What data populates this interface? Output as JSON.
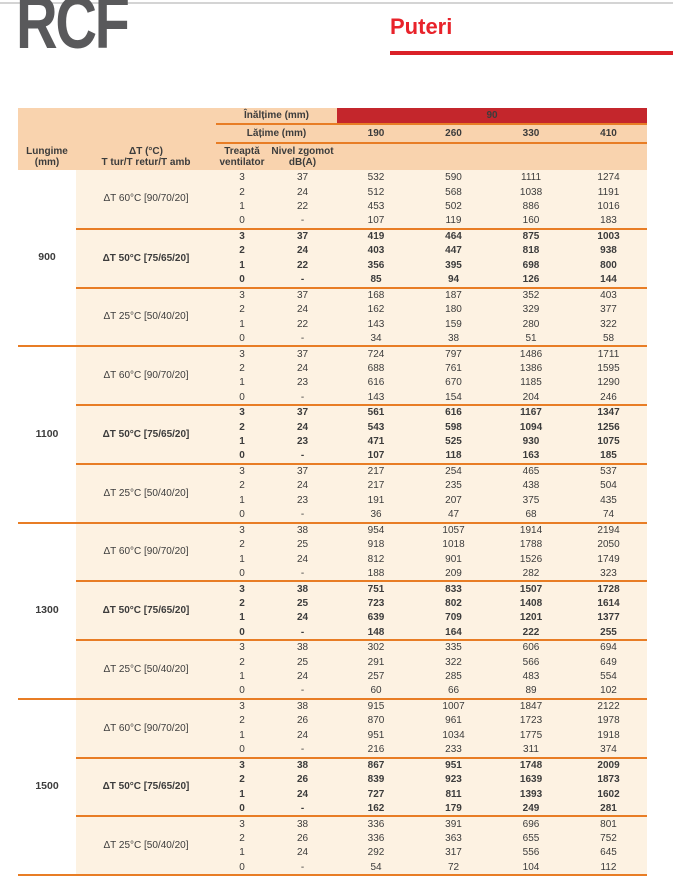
{
  "page": {
    "logo": "RCF",
    "section_title": "Puteri"
  },
  "colors": {
    "accent_red": "#e8232b",
    "band_red": "#c4262c",
    "rule_orange": "#e87d25",
    "header_peach": "#f9d3ae",
    "row_cream": "#fdf2e2",
    "logo_gray": "#59595b"
  },
  "table": {
    "inaltime_label": "Înălțime (mm)",
    "inaltime_value": "90",
    "latime_label": "Lățime (mm)",
    "width_values": [
      "190",
      "260",
      "330",
      "410"
    ],
    "col_headers": {
      "lungime": "Lungime\n(mm)",
      "delta_t": "ΔT (°C)\nT tur/T retur/T amb",
      "treapta": "Treaptă\nventilator",
      "nivel": "Nivel zgomot\ndB(A)"
    },
    "groups": [
      {
        "lungime": "900",
        "subgroups": [
          {
            "label": "ΔT 60°C [90/70/20]",
            "bold": false,
            "rows": [
              [
                "3",
                "37",
                "532",
                "590",
                "1111",
                "1274"
              ],
              [
                "2",
                "24",
                "512",
                "568",
                "1038",
                "1191"
              ],
              [
                "1",
                "22",
                "453",
                "502",
                "886",
                "1016"
              ],
              [
                "0",
                "-",
                "107",
                "119",
                "160",
                "183"
              ]
            ]
          },
          {
            "label": "ΔT 50°C [75/65/20]",
            "bold": true,
            "rows": [
              [
                "3",
                "37",
                "419",
                "464",
                "875",
                "1003"
              ],
              [
                "2",
                "24",
                "403",
                "447",
                "818",
                "938"
              ],
              [
                "1",
                "22",
                "356",
                "395",
                "698",
                "800"
              ],
              [
                "0",
                "-",
                "85",
                "94",
                "126",
                "144"
              ]
            ]
          },
          {
            "label": "ΔT 25°C [50/40/20]",
            "bold": false,
            "rows": [
              [
                "3",
                "37",
                "168",
                "187",
                "352",
                "403"
              ],
              [
                "2",
                "24",
                "162",
                "180",
                "329",
                "377"
              ],
              [
                "1",
                "22",
                "143",
                "159",
                "280",
                "322"
              ],
              [
                "0",
                "-",
                "34",
                "38",
                "51",
                "58"
              ]
            ]
          }
        ]
      },
      {
        "lungime": "1100",
        "subgroups": [
          {
            "label": "ΔT 60°C [90/70/20]",
            "bold": false,
            "rows": [
              [
                "3",
                "37",
                "724",
                "797",
                "1486",
                "1711"
              ],
              [
                "2",
                "24",
                "688",
                "761",
                "1386",
                "1595"
              ],
              [
                "1",
                "23",
                "616",
                "670",
                "1185",
                "1290"
              ],
              [
                "0",
                "-",
                "143",
                "154",
                "204",
                "246"
              ]
            ]
          },
          {
            "label": "ΔT 50°C [75/65/20]",
            "bold": true,
            "rows": [
              [
                "3",
                "37",
                "561",
                "616",
                "1167",
                "1347"
              ],
              [
                "2",
                "24",
                "543",
                "598",
                "1094",
                "1256"
              ],
              [
                "1",
                "23",
                "471",
                "525",
                "930",
                "1075"
              ],
              [
                "0",
                "-",
                "107",
                "118",
                "163",
                "185"
              ]
            ]
          },
          {
            "label": "ΔT 25°C [50/40/20]",
            "bold": false,
            "rows": [
              [
                "3",
                "37",
                "217",
                "254",
                "465",
                "537"
              ],
              [
                "2",
                "24",
                "217",
                "235",
                "438",
                "504"
              ],
              [
                "1",
                "23",
                "191",
                "207",
                "375",
                "435"
              ],
              [
                "0",
                "-",
                "36",
                "47",
                "68",
                "74"
              ]
            ]
          }
        ]
      },
      {
        "lungime": "1300",
        "subgroups": [
          {
            "label": "ΔT 60°C [90/70/20]",
            "bold": false,
            "rows": [
              [
                "3",
                "38",
                "954",
                "1057",
                "1914",
                "2194"
              ],
              [
                "2",
                "25",
                "918",
                "1018",
                "1788",
                "2050"
              ],
              [
                "1",
                "24",
                "812",
                "901",
                "1526",
                "1749"
              ],
              [
                "0",
                "-",
                "188",
                "209",
                "282",
                "323"
              ]
            ]
          },
          {
            "label": "ΔT 50°C [75/65/20]",
            "bold": true,
            "rows": [
              [
                "3",
                "38",
                "751",
                "833",
                "1507",
                "1728"
              ],
              [
                "2",
                "25",
                "723",
                "802",
                "1408",
                "1614"
              ],
              [
                "1",
                "24",
                "639",
                "709",
                "1201",
                "1377"
              ],
              [
                "0",
                "-",
                "148",
                "164",
                "222",
                "255"
              ]
            ]
          },
          {
            "label": "ΔT 25°C [50/40/20]",
            "bold": false,
            "rows": [
              [
                "3",
                "38",
                "302",
                "335",
                "606",
                "694"
              ],
              [
                "2",
                "25",
                "291",
                "322",
                "566",
                "649"
              ],
              [
                "1",
                "24",
                "257",
                "285",
                "483",
                "554"
              ],
              [
                "0",
                "-",
                "60",
                "66",
                "89",
                "102"
              ]
            ]
          }
        ]
      },
      {
        "lungime": "1500",
        "subgroups": [
          {
            "label": "ΔT 60°C [90/70/20]",
            "bold": false,
            "rows": [
              [
                "3",
                "38",
                "915",
                "1007",
                "1847",
                "2122"
              ],
              [
                "2",
                "26",
                "870",
                "961",
                "1723",
                "1978"
              ],
              [
                "1",
                "24",
                "951",
                "1034",
                "1775",
                "1918"
              ],
              [
                "0",
                "-",
                "216",
                "233",
                "311",
                "374"
              ]
            ]
          },
          {
            "label": "ΔT 50°C [75/65/20]",
            "bold": true,
            "rows": [
              [
                "3",
                "38",
                "867",
                "951",
                "1748",
                "2009"
              ],
              [
                "2",
                "26",
                "839",
                "923",
                "1639",
                "1873"
              ],
              [
                "1",
                "24",
                "727",
                "811",
                "1393",
                "1602"
              ],
              [
                "0",
                "-",
                "162",
                "179",
                "249",
                "281"
              ]
            ]
          },
          {
            "label": "ΔT 25°C [50/40/20]",
            "bold": false,
            "rows": [
              [
                "3",
                "38",
                "336",
                "391",
                "696",
                "801"
              ],
              [
                "2",
                "26",
                "336",
                "363",
                "655",
                "752"
              ],
              [
                "1",
                "24",
                "292",
                "317",
                "556",
                "645"
              ],
              [
                "0",
                "-",
                "54",
                "72",
                "104",
                "112"
              ]
            ]
          }
        ]
      }
    ]
  }
}
